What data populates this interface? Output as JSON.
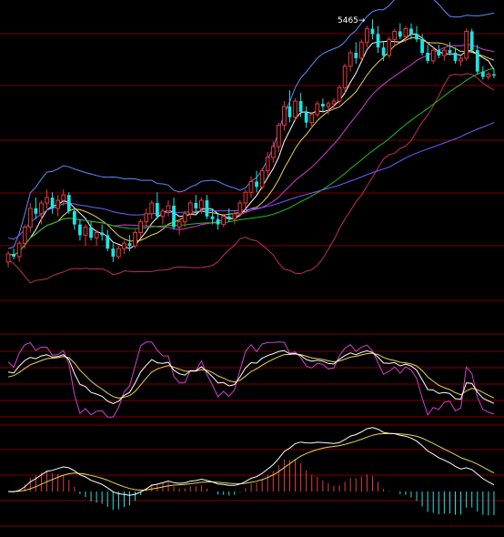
{
  "colors": {
    "background": "#000000",
    "grid": "#7a0000",
    "up": "#e83a3a",
    "down": "#1de4e4",
    "boll_upper": "#5a8cff",
    "boll_mid": "#e8d64a",
    "boll_lower": "#c03050",
    "ma_fast": "#ffffff",
    "ma_mid": "#e8d64a",
    "ma_slow": "#d040d0",
    "ma_long": "#22c022",
    "ma_year": "#7060ff",
    "kdj_k": "#ffffff",
    "kdj_d": "#e8d64a",
    "kdj_j": "#d040d0",
    "macd_dif": "#ffffff",
    "macd_dea": "#e8d64a"
  },
  "chart_data": {
    "type": "candlestick",
    "annotation": {
      "label": "5465",
      "arrow": "→"
    },
    "ohlc": [
      [
        4560,
        4600,
        4540,
        4590
      ],
      [
        4590,
        4610,
        4570,
        4580
      ],
      [
        4580,
        4640,
        4560,
        4630
      ],
      [
        4630,
        4700,
        4610,
        4690
      ],
      [
        4690,
        4780,
        4670,
        4760
      ],
      [
        4760,
        4800,
        4720,
        4740
      ],
      [
        4740,
        4790,
        4700,
        4780
      ],
      [
        4780,
        4830,
        4760,
        4800
      ],
      [
        4800,
        4820,
        4740,
        4760
      ],
      [
        4760,
        4810,
        4730,
        4790
      ],
      [
        4790,
        4830,
        4770,
        4810
      ],
      [
        4810,
        4820,
        4740,
        4750
      ],
      [
        4750,
        4760,
        4680,
        4700
      ],
      [
        4700,
        4720,
        4640,
        4660
      ],
      [
        4660,
        4700,
        4620,
        4690
      ],
      [
        4690,
        4710,
        4640,
        4650
      ],
      [
        4650,
        4680,
        4620,
        4670
      ],
      [
        4670,
        4700,
        4640,
        4660
      ],
      [
        4660,
        4680,
        4600,
        4610
      ],
      [
        4610,
        4630,
        4560,
        4580
      ],
      [
        4580,
        4620,
        4570,
        4610
      ],
      [
        4610,
        4640,
        4590,
        4630
      ],
      [
        4630,
        4660,
        4600,
        4620
      ],
      [
        4620,
        4680,
        4610,
        4670
      ],
      [
        4670,
        4720,
        4650,
        4710
      ],
      [
        4710,
        4760,
        4690,
        4740
      ],
      [
        4740,
        4790,
        4720,
        4780
      ],
      [
        4780,
        4820,
        4720,
        4730
      ],
      [
        4730,
        4760,
        4700,
        4750
      ],
      [
        4750,
        4790,
        4730,
        4770
      ],
      [
        4770,
        4800,
        4680,
        4690
      ],
      [
        4690,
        4720,
        4660,
        4710
      ],
      [
        4710,
        4750,
        4690,
        4740
      ],
      [
        4740,
        4790,
        4720,
        4780
      ],
      [
        4780,
        4810,
        4740,
        4760
      ],
      [
        4760,
        4800,
        4740,
        4790
      ],
      [
        4790,
        4810,
        4720,
        4730
      ],
      [
        4730,
        4760,
        4700,
        4720
      ],
      [
        4720,
        4740,
        4680,
        4700
      ],
      [
        4700,
        4740,
        4690,
        4730
      ],
      [
        4730,
        4760,
        4710,
        4720
      ],
      [
        4720,
        4750,
        4700,
        4740
      ],
      [
        4740,
        4790,
        4730,
        4780
      ],
      [
        4780,
        4830,
        4760,
        4820
      ],
      [
        4820,
        4880,
        4800,
        4860
      ],
      [
        4860,
        4900,
        4820,
        4840
      ],
      [
        4840,
        4910,
        4830,
        4900
      ],
      [
        4900,
        4970,
        4880,
        4950
      ],
      [
        4950,
        5010,
        4930,
        4990
      ],
      [
        4990,
        5080,
        4970,
        5070
      ],
      [
        5070,
        5160,
        5050,
        5140
      ],
      [
        5140,
        5200,
        5080,
        5100
      ],
      [
        5100,
        5170,
        5090,
        5160
      ],
      [
        5160,
        5190,
        5100,
        5120
      ],
      [
        5120,
        5140,
        5060,
        5080
      ],
      [
        5080,
        5120,
        5060,
        5110
      ],
      [
        5110,
        5160,
        5100,
        5150
      ],
      [
        5150,
        5170,
        5120,
        5140
      ],
      [
        5140,
        5160,
        5110,
        5150
      ],
      [
        5150,
        5170,
        5130,
        5160
      ],
      [
        5160,
        5220,
        5150,
        5210
      ],
      [
        5210,
        5300,
        5190,
        5290
      ],
      [
        5290,
        5350,
        5270,
        5340
      ],
      [
        5340,
        5380,
        5300,
        5320
      ],
      [
        5320,
        5390,
        5310,
        5380
      ],
      [
        5380,
        5440,
        5360,
        5430
      ],
      [
        5430,
        5465,
        5390,
        5410
      ],
      [
        5410,
        5440,
        5340,
        5360
      ],
      [
        5360,
        5380,
        5310,
        5330
      ],
      [
        5330,
        5400,
        5320,
        5390
      ],
      [
        5390,
        5430,
        5370,
        5420
      ],
      [
        5420,
        5450,
        5390,
        5400
      ],
      [
        5400,
        5440,
        5380,
        5430
      ],
      [
        5430,
        5450,
        5390,
        5410
      ],
      [
        5410,
        5440,
        5380,
        5390
      ],
      [
        5390,
        5410,
        5330,
        5340
      ],
      [
        5340,
        5370,
        5300,
        5310
      ],
      [
        5310,
        5360,
        5300,
        5350
      ],
      [
        5350,
        5370,
        5320,
        5330
      ],
      [
        5330,
        5360,
        5310,
        5350
      ],
      [
        5350,
        5380,
        5330,
        5340
      ],
      [
        5340,
        5360,
        5300,
        5310
      ],
      [
        5310,
        5330,
        5290,
        5320
      ],
      [
        5320,
        5430,
        5310,
        5420
      ],
      [
        5420,
        5430,
        5340,
        5350
      ],
      [
        5350,
        5370,
        5260,
        5270
      ],
      [
        5270,
        5290,
        5240,
        5250
      ],
      [
        5250,
        5270,
        5240,
        5260
      ],
      [
        5260,
        5280,
        5245,
        5255
      ]
    ],
    "price_range": [
      4400,
      5520
    ],
    "kdj_range": [
      -10,
      110
    ],
    "macd_range": [
      -100,
      140
    ]
  }
}
